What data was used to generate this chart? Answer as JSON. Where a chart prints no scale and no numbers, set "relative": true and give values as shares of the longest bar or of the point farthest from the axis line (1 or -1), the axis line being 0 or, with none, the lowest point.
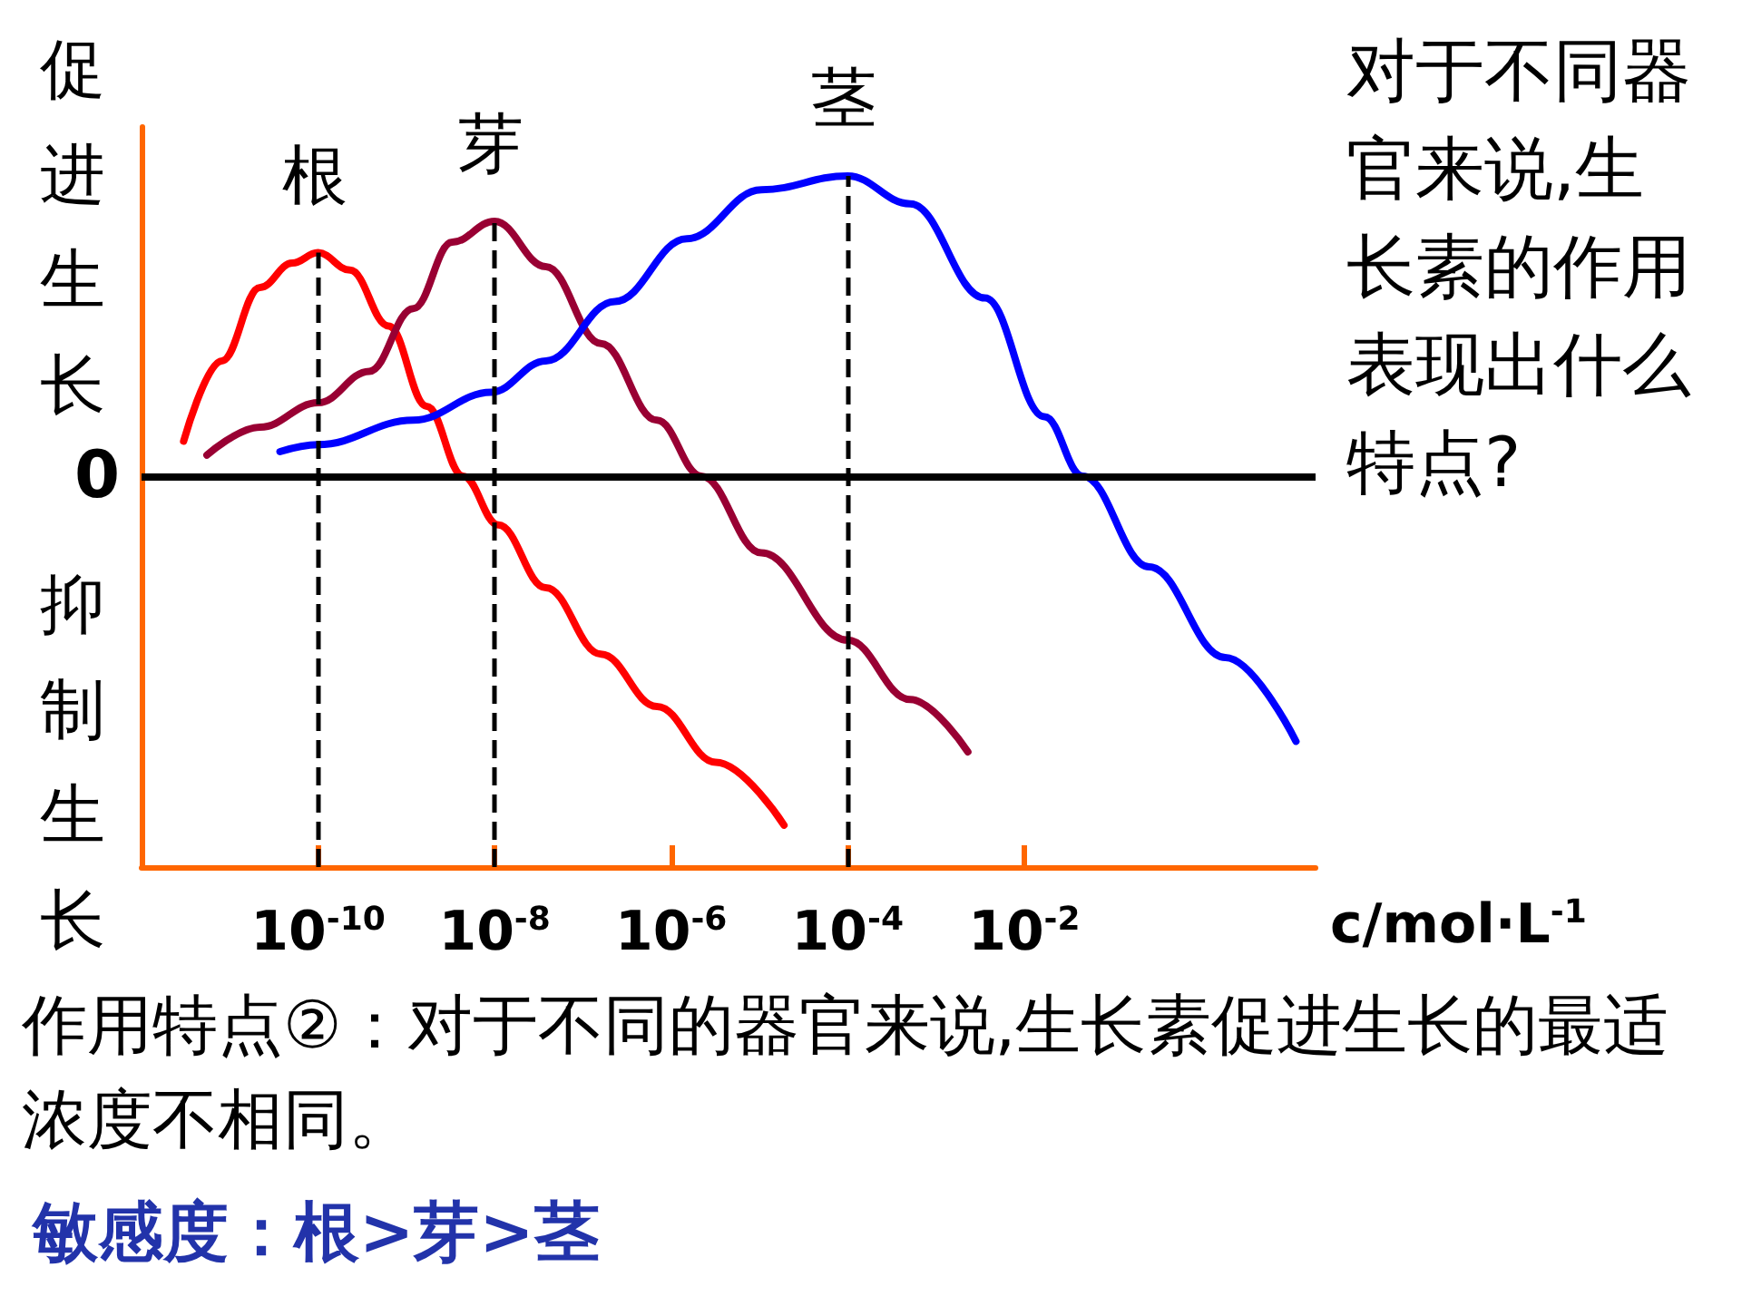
{
  "chart_data": {
    "type": "line",
    "log": "x",
    "relative": true,
    "ylabel": "促进生长",
    "xlabel": "c/mol·L$^{-1}$",
    "xlim": [
      1e-12,
      20
    ],
    "xticks": [
      {
        "value": 1e-10,
        "label": "10$^{-10}$"
      },
      {
        "value": 1e-08,
        "label": "10$^{-8}$"
      },
      {
        "value": 1e-06,
        "label": "10$^{-6}$"
      },
      {
        "value": 0.0001,
        "label": "10$^{-4}$"
      },
      {
        "value": 0.01,
        "label": "10$^{-2}$"
      }
    ],
    "series": [
      {
        "name": "根",
        "color": "#ff0000",
        "x": [
          3e-12,
          8.1e-12,
          2.2e-11,
          5.1e-11,
          1e-10,
          2.3e-10,
          6.3e-10,
          1.7e-09,
          4.4e-09,
          1.1e-08,
          3.8e-08,
          1.6e-07,
          6.9e-07,
          3.2e-06,
          1.9e-05
        ],
        "values": [
          0.1,
          0.33,
          0.54,
          0.61,
          0.64,
          0.59,
          0.43,
          0.2,
          0,
          -0.14,
          -0.32,
          -0.51,
          -0.66,
          -0.82,
          -1
        ]
      },
      {
        "name": "芽",
        "color": "#990033",
        "x": [
          5.5e-12,
          2.2e-11,
          1e-10,
          3.8e-10,
          1.2e-09,
          3.3e-09,
          1e-08,
          3.8e-08,
          1.6e-07,
          6.9e-07,
          2.2e-06,
          1.05e-05,
          0.0001,
          0.00051,
          0.0023
        ],
        "values": [
          0.06,
          0.14,
          0.21,
          0.3,
          0.48,
          0.67,
          0.73,
          0.6,
          0.38,
          0.16,
          0,
          -0.22,
          -0.47,
          -0.64,
          -0.79
        ]
      },
      {
        "name": "茎",
        "color": "#0000ff",
        "x": [
          3.7e-11,
          1e-10,
          1.2e-09,
          9.1e-09,
          3.8e-08,
          2.3e-07,
          1.5e-06,
          1.05e-05,
          0.0001,
          0.00051,
          0.0036,
          0.017,
          0.046,
          0.26,
          1.9,
          12
        ],
        "values": [
          0.07,
          0.09,
          0.16,
          0.24,
          0.33,
          0.5,
          0.68,
          0.82,
          0.86,
          0.78,
          0.51,
          0.17,
          0,
          -0.26,
          -0.52,
          -0.76
        ]
      }
    ],
    "ref_lines": [
      {
        "axis": "y",
        "value": 0,
        "label": "0",
        "color": "#000000",
        "line_style": "solid"
      },
      {
        "axis": "x",
        "value": 1e-10,
        "label": null,
        "color": "#000000",
        "line_style": "dashed"
      },
      {
        "axis": "x",
        "value": 1e-08,
        "label": null,
        "color": "#000000",
        "line_style": "dashed"
      },
      {
        "axis": "x",
        "value": 0.0001,
        "label": null,
        "color": "#000000",
        "line_style": "dashed"
      }
    ],
    "annotations": [
      "抑制生长",
      "对于不同器官来说,生长素的作用表现出什么特点?",
      "作用特点②：对于不同的器官来说,生长素促进生长的最适浓度不相同。",
      "敏感度：根>芽>茎"
    ],
    "line_style": "solid",
    "marker": "none",
    "grid": false,
    "legend": false
  }
}
